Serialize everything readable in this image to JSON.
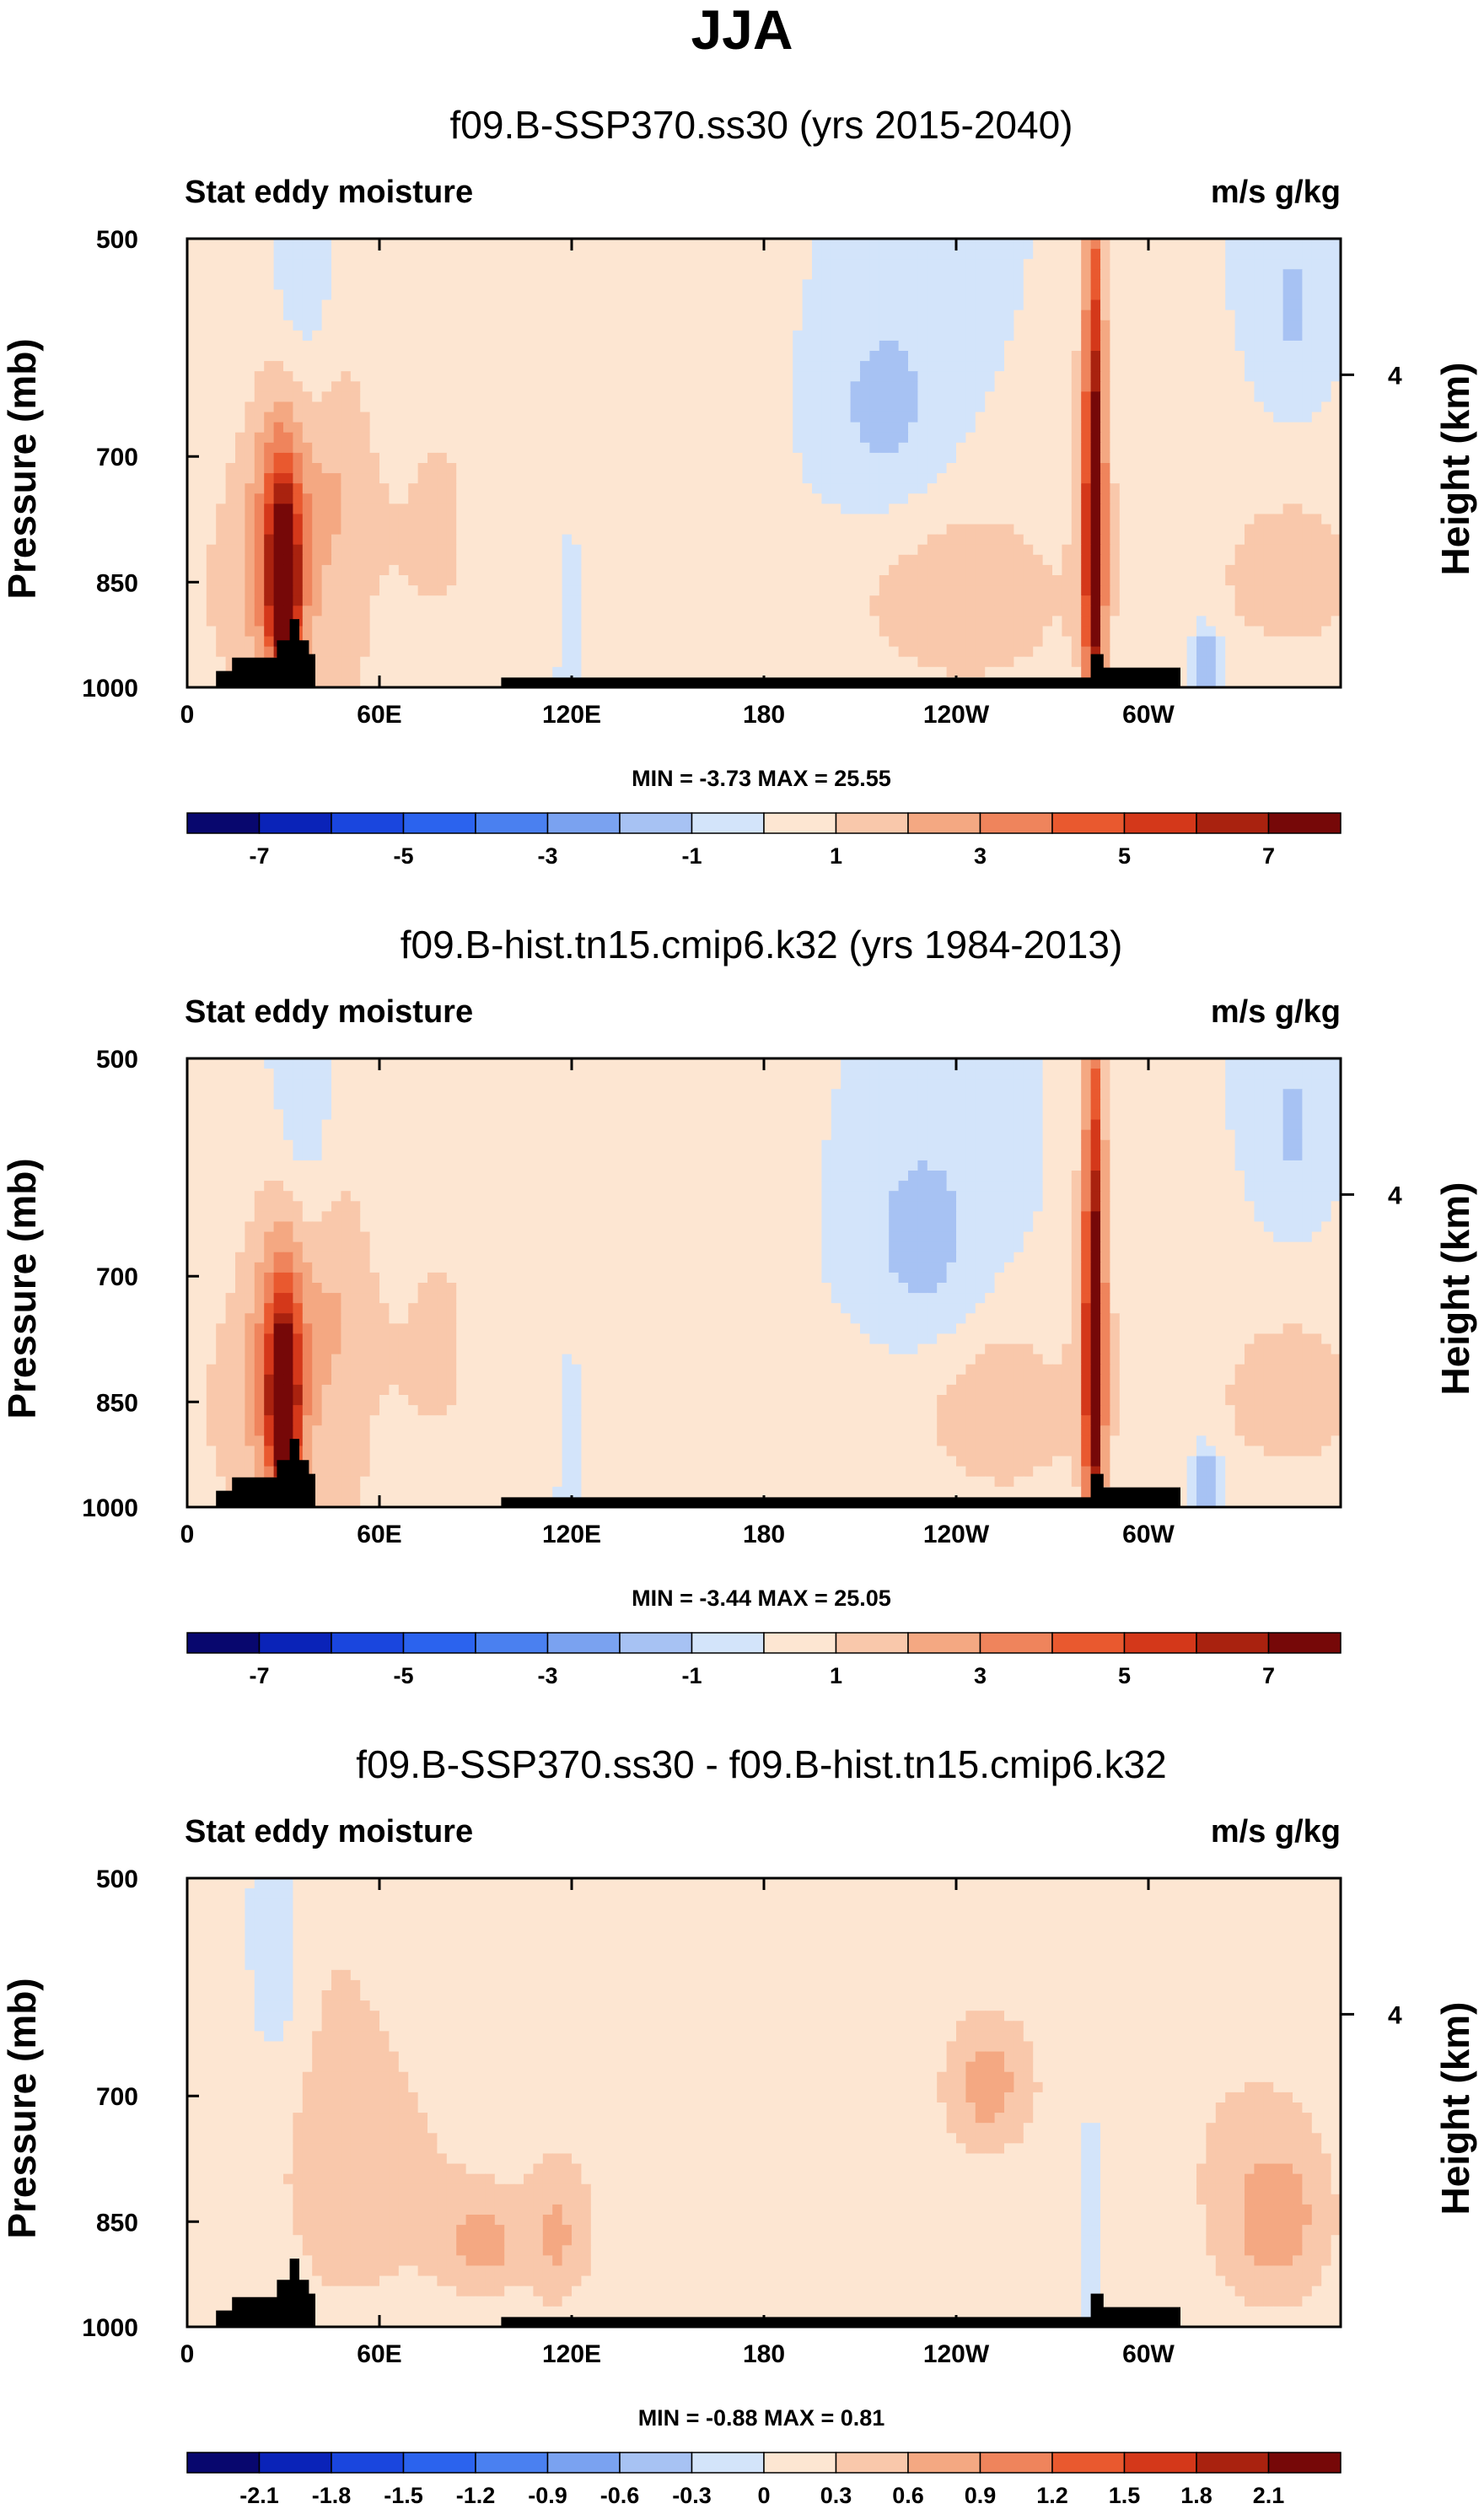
{
  "figure": {
    "title": "JJA",
    "colors": {
      "full_palette": [
        "#08076e",
        "#0a23b8",
        "#1a46de",
        "#2b63ee",
        "#4a80f0",
        "#7aa2f0",
        "#a7c2f3",
        "#d3e4fa",
        "#fde6d2",
        "#f9c8ab",
        "#f4a882",
        "#ef845c",
        "#e9592f",
        "#d4381a",
        "#a9220f",
        "#760808"
      ],
      "terrain": "#000000"
    }
  },
  "chart_data": [
    {
      "type": "heatmap",
      "title": "f09.B-SSP370.ss30 (yrs 2015-2040)",
      "left_label": "Stat eddy moisture",
      "right_label": "m/s g/kg",
      "ylabel": "Pressure (mb)",
      "ylabel_right": "Height (km)",
      "x_ticks": [
        "0",
        "60E",
        "120E",
        "180",
        "120W",
        "60W"
      ],
      "x_tick_values": [
        0,
        60,
        120,
        180,
        240,
        300
      ],
      "xlim": [
        0,
        360
      ],
      "y_ticks": [
        "500",
        "700",
        "850",
        "1000"
      ],
      "y_tick_values": [
        500,
        700,
        850,
        1000
      ],
      "ylim": [
        1000,
        500
      ],
      "right_ticks": [
        "4"
      ],
      "right_tick_pressure": [
        617
      ],
      "min_max": "MIN =  -3.73   MAX =  25.55",
      "colorbar_levels": [
        -8,
        -7,
        -6,
        -5,
        -4,
        -3,
        -2,
        -1,
        0,
        1,
        2,
        3,
        4,
        5,
        6,
        7,
        8
      ],
      "colorbar_labels": [
        "-7",
        "-5",
        "-3",
        "-1",
        "1",
        "3",
        "5",
        "7"
      ],
      "colorbar_label_values": [
        -7,
        -5,
        -3,
        -1,
        1,
        3,
        5,
        7
      ],
      "features": [
        {
          "lon": 30,
          "p": 860,
          "value": 8.0,
          "dlon": 3,
          "dp": 80
        },
        {
          "lon": 30,
          "p": 800,
          "value": 4.0,
          "dlon": 7,
          "dp": 140
        },
        {
          "lon": 14,
          "p": 860,
          "value": 1.2,
          "dlon": 10,
          "dp": 140
        },
        {
          "lon": 48,
          "p": 720,
          "value": 1.3,
          "dlon": 7,
          "dp": 120
        },
        {
          "lon": 48,
          "p": 960,
          "value": 1.2,
          "dlon": 6,
          "dp": 50
        },
        {
          "lon": 60,
          "p": 800,
          "value": 0.8,
          "dlon": 25,
          "dp": 120
        },
        {
          "lon": 35,
          "p": 560,
          "value": -1.2,
          "dlon": 7,
          "dp": 80
        },
        {
          "lon": 120,
          "p": 900,
          "value": -0.6,
          "dlon": 3,
          "dp": 100
        },
        {
          "lon": 80,
          "p": 700,
          "value": 0.6,
          "dlon": 10,
          "dp": 200
        },
        {
          "lon": 218,
          "p": 650,
          "value": -1.4,
          "dlon": 14,
          "dp": 80
        },
        {
          "lon": 245,
          "p": 870,
          "value": 1.4,
          "dlon": 20,
          "dp": 100
        },
        {
          "lon": 283,
          "p": 800,
          "value": 7.0,
          "dlon": 2,
          "dp": 220
        },
        {
          "lon": 283,
          "p": 720,
          "value": 2.0,
          "dlon": 5,
          "dp": 200
        },
        {
          "lon": 318,
          "p": 960,
          "value": -2.6,
          "dlon": 3,
          "dp": 35
        },
        {
          "lon": 345,
          "p": 560,
          "value": -1.2,
          "dlon": 6,
          "dp": 60
        },
        {
          "lon": 345,
          "p": 840,
          "value": 1.5,
          "dlon": 20,
          "dp": 90
        },
        {
          "lon": 210,
          "p": 880,
          "value": 0.6,
          "dlon": 60,
          "dp": 80
        },
        {
          "lon": 150,
          "p": 600,
          "value": 0.5,
          "dlon": 25,
          "dp": 200
        }
      ],
      "terrain": [
        [
          9,
          975
        ],
        [
          14,
          955
        ],
        [
          26,
          955
        ],
        [
          28,
          930
        ],
        [
          32,
          900
        ],
        [
          35,
          930
        ],
        [
          38,
          950
        ],
        [
          40,
          1000
        ],
        [
          98,
          985
        ],
        [
          101,
          985
        ],
        [
          282,
          950
        ],
        [
          286,
          970
        ],
        [
          306,
          970
        ],
        [
          310,
          1000
        ]
      ]
    },
    {
      "type": "heatmap",
      "title": "f09.B-hist.tn15.cmip6.k32 (yrs 1984-2013)",
      "left_label": "Stat eddy moisture",
      "right_label": "m/s g/kg",
      "ylabel": "Pressure (mb)",
      "ylabel_right": "Height (km)",
      "x_ticks": [
        "0",
        "60E",
        "120E",
        "180",
        "120W",
        "60W"
      ],
      "x_tick_values": [
        0,
        60,
        120,
        180,
        240,
        300
      ],
      "xlim": [
        0,
        360
      ],
      "y_ticks": [
        "500",
        "700",
        "850",
        "1000"
      ],
      "y_tick_values": [
        500,
        700,
        850,
        1000
      ],
      "ylim": [
        1000,
        500
      ],
      "right_ticks": [
        "4"
      ],
      "right_tick_pressure": [
        617
      ],
      "min_max": "MIN =  -3.44   MAX =  25.05",
      "colorbar_levels": [
        -8,
        -7,
        -6,
        -5,
        -4,
        -3,
        -2,
        -1,
        0,
        1,
        2,
        3,
        4,
        5,
        6,
        7,
        8
      ],
      "colorbar_labels": [
        "-7",
        "-5",
        "-3",
        "-1",
        "1",
        "3",
        "5",
        "7"
      ],
      "colorbar_label_values": [
        -7,
        -5,
        -3,
        -1,
        1,
        3,
        5,
        7
      ],
      "features": [
        {
          "lon": 30,
          "p": 860,
          "value": 7.5,
          "dlon": 3,
          "dp": 80
        },
        {
          "lon": 30,
          "p": 800,
          "value": 3.8,
          "dlon": 7,
          "dp": 140
        },
        {
          "lon": 14,
          "p": 860,
          "value": 1.2,
          "dlon": 10,
          "dp": 140
        },
        {
          "lon": 48,
          "p": 720,
          "value": 1.3,
          "dlon": 7,
          "dp": 120
        },
        {
          "lon": 48,
          "p": 960,
          "value": 1.2,
          "dlon": 6,
          "dp": 50
        },
        {
          "lon": 60,
          "p": 800,
          "value": 0.8,
          "dlon": 25,
          "dp": 120
        },
        {
          "lon": 35,
          "p": 560,
          "value": -1.2,
          "dlon": 7,
          "dp": 80
        },
        {
          "lon": 120,
          "p": 900,
          "value": -0.6,
          "dlon": 3,
          "dp": 100
        },
        {
          "lon": 80,
          "p": 700,
          "value": 0.6,
          "dlon": 10,
          "dp": 200
        },
        {
          "lon": 230,
          "p": 660,
          "value": -1.5,
          "dlon": 14,
          "dp": 80
        },
        {
          "lon": 255,
          "p": 860,
          "value": 1.4,
          "dlon": 15,
          "dp": 90
        },
        {
          "lon": 283,
          "p": 800,
          "value": 7.0,
          "dlon": 2,
          "dp": 220
        },
        {
          "lon": 283,
          "p": 720,
          "value": 2.0,
          "dlon": 5,
          "dp": 200
        },
        {
          "lon": 318,
          "p": 960,
          "value": -2.4,
          "dlon": 3,
          "dp": 35
        },
        {
          "lon": 345,
          "p": 560,
          "value": -1.2,
          "dlon": 6,
          "dp": 60
        },
        {
          "lon": 345,
          "p": 840,
          "value": 1.5,
          "dlon": 20,
          "dp": 90
        },
        {
          "lon": 210,
          "p": 880,
          "value": 0.6,
          "dlon": 60,
          "dp": 80
        },
        {
          "lon": 150,
          "p": 600,
          "value": 0.5,
          "dlon": 25,
          "dp": 200
        }
      ],
      "terrain": [
        [
          9,
          975
        ],
        [
          14,
          955
        ],
        [
          26,
          955
        ],
        [
          28,
          930
        ],
        [
          32,
          900
        ],
        [
          35,
          930
        ],
        [
          38,
          950
        ],
        [
          40,
          1000
        ],
        [
          98,
          985
        ],
        [
          101,
          985
        ],
        [
          282,
          950
        ],
        [
          286,
          970
        ],
        [
          306,
          970
        ],
        [
          310,
          1000
        ]
      ]
    },
    {
      "type": "heatmap",
      "title": "f09.B-SSP370.ss30 - f09.B-hist.tn15.cmip6.k32",
      "left_label": "Stat eddy moisture",
      "right_label": "m/s g/kg",
      "ylabel": "Pressure (mb)",
      "ylabel_right": "Height (km)",
      "x_ticks": [
        "0",
        "60E",
        "120E",
        "180",
        "120W",
        "60W"
      ],
      "x_tick_values": [
        0,
        60,
        120,
        180,
        240,
        300
      ],
      "xlim": [
        0,
        360
      ],
      "y_ticks": [
        "500",
        "700",
        "850",
        "1000"
      ],
      "y_tick_values": [
        500,
        700,
        850,
        1000
      ],
      "ylim": [
        1000,
        500
      ],
      "right_ticks": [
        "4"
      ],
      "right_tick_pressure": [
        617
      ],
      "min_max": "MIN =  -0.88   MAX =  0.81",
      "colorbar_levels": [
        -2.4,
        -2.1,
        -1.8,
        -1.5,
        -1.2,
        -0.9,
        -0.6,
        -0.3,
        0,
        0.3,
        0.6,
        0.9,
        1.2,
        1.5,
        1.8,
        2.1,
        2.4
      ],
      "colorbar_labels": [
        "-2.1",
        "-1.8",
        "-1.5",
        "-1.2",
        "-0.9",
        "-0.6",
        "-0.3",
        "0",
        "0.3",
        "0.6",
        "0.9",
        "1.2",
        "1.5",
        "1.8",
        "2.1"
      ],
      "colorbar_label_values": [
        -2.1,
        -1.8,
        -1.5,
        -1.2,
        -0.9,
        -0.6,
        -0.3,
        0,
        0.3,
        0.6,
        0.9,
        1.2,
        1.5,
        1.8,
        2.1
      ],
      "features": [
        {
          "lon": 28,
          "p": 560,
          "value": -0.45,
          "dlon": 6,
          "dp": 80
        },
        {
          "lon": 40,
          "p": 700,
          "value": 0.25,
          "dlon": 20,
          "dp": 300
        },
        {
          "lon": 92,
          "p": 880,
          "value": 0.55,
          "dlon": 8,
          "dp": 40
        },
        {
          "lon": 75,
          "p": 800,
          "value": 0.25,
          "dlon": 30,
          "dp": 200
        },
        {
          "lon": 115,
          "p": 870,
          "value": 0.45,
          "dlon": 6,
          "dp": 60
        },
        {
          "lon": 250,
          "p": 690,
          "value": 0.55,
          "dlon": 7,
          "dp": 40
        },
        {
          "lon": 250,
          "p": 680,
          "value": 0.25,
          "dlon": 40,
          "dp": 120
        },
        {
          "lon": 340,
          "p": 850,
          "value": 0.6,
          "dlon": 12,
          "dp": 80
        },
        {
          "lon": 330,
          "p": 760,
          "value": 0.22,
          "dlon": 30,
          "dp": 200
        },
        {
          "lon": 282,
          "p": 820,
          "value": -0.45,
          "dlon": 2,
          "dp": 100
        },
        {
          "lon": 160,
          "p": 880,
          "value": 0.2,
          "dlon": 40,
          "dp": 120
        },
        {
          "lon": 150,
          "p": 600,
          "value": 0.2,
          "dlon": 20,
          "dp": 200
        }
      ],
      "terrain": [
        [
          9,
          975
        ],
        [
          14,
          955
        ],
        [
          26,
          955
        ],
        [
          28,
          930
        ],
        [
          32,
          900
        ],
        [
          35,
          930
        ],
        [
          38,
          950
        ],
        [
          40,
          1000
        ],
        [
          98,
          985
        ],
        [
          101,
          985
        ],
        [
          282,
          950
        ],
        [
          286,
          970
        ],
        [
          306,
          970
        ],
        [
          310,
          1000
        ]
      ]
    }
  ]
}
